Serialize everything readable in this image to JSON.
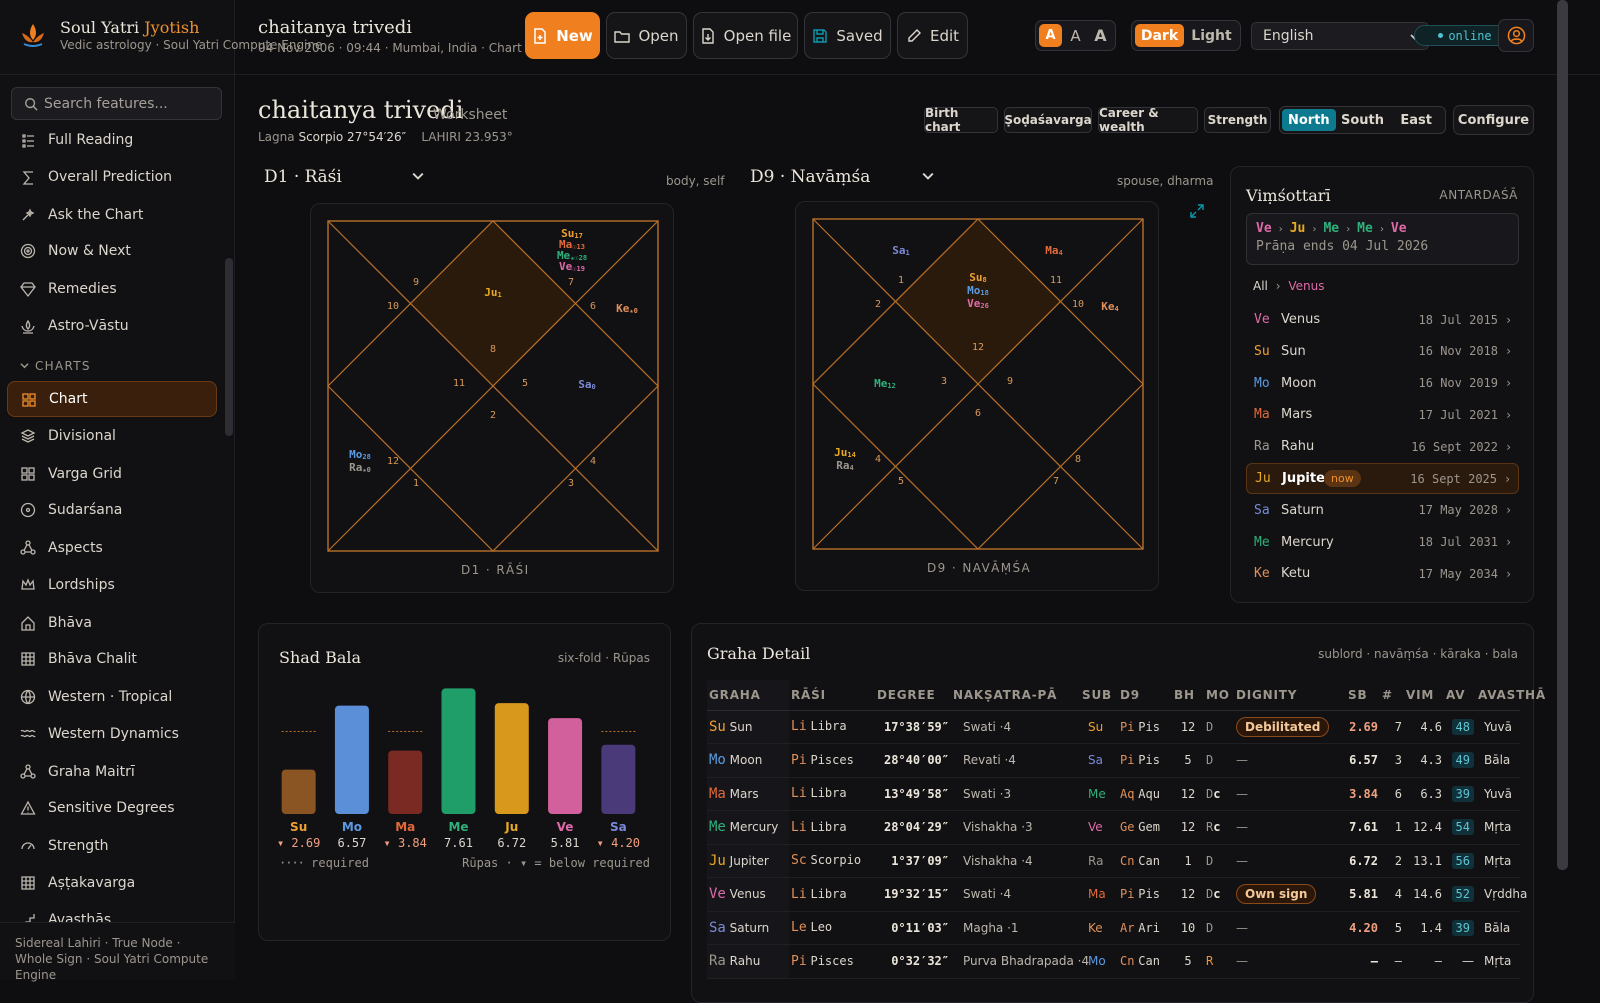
{
  "app": {
    "brand_name": "Soul Yatri",
    "brand_accent": "Jyotish",
    "brand_tagline": "Vedic astrology · Soul Yatri Compute Engine",
    "search_placeholder": "Search features...",
    "footer": "Sidereal Lahiri · True Node · Whole Sign · Soul Yatri Compute Engine"
  },
  "sidebar": {
    "items": [
      {
        "label": "Full Reading",
        "icon": "list-icon"
      },
      {
        "label": "Overall Prediction",
        "icon": "sigma-icon"
      },
      {
        "label": "Ask the Chart",
        "icon": "sparkle-icon"
      },
      {
        "label": "Now & Next",
        "icon": "target-icon"
      },
      {
        "label": "Remedies",
        "icon": "gem-icon"
      },
      {
        "label": "Astro-Vāstu",
        "icon": "lotus-icon"
      }
    ],
    "section": "CHARTS",
    "chart_items": [
      {
        "label": "Chart",
        "icon": "grid-icon",
        "active": true
      },
      {
        "label": "Divisional",
        "icon": "layers-icon"
      },
      {
        "label": "Varga Grid",
        "icon": "grid-icon"
      },
      {
        "label": "Sudarśana",
        "icon": "circle-icon"
      },
      {
        "label": "Aspects",
        "icon": "network-icon"
      },
      {
        "label": "Lordships",
        "icon": "crown-icon"
      },
      {
        "label": "Bhāva",
        "icon": "house-icon"
      },
      {
        "label": "Bhāva Chalit",
        "icon": "table-icon"
      },
      {
        "label": "Western · Tropical",
        "icon": "globe-icon"
      },
      {
        "label": "Western Dynamics",
        "icon": "waves-icon"
      },
      {
        "label": "Graha Maitrī",
        "icon": "network-icon"
      },
      {
        "label": "Sensitive Degrees",
        "icon": "alert-icon"
      },
      {
        "label": "Strength",
        "icon": "gauge-icon"
      },
      {
        "label": "Aṣṭakavarga",
        "icon": "table-icon"
      },
      {
        "label": "Avasthās",
        "icon": "steps-icon"
      }
    ]
  },
  "topbar": {
    "name": "chaitanya trivedi",
    "meta": "04 Nov 2006 · 09:44 · Mumbai, India  ·  Chart",
    "buttons": {
      "new": "New",
      "open": "Open",
      "open_file": "Open file",
      "saved": "Saved",
      "edit": "Edit"
    },
    "font_sizes": [
      "A",
      "A",
      "A"
    ],
    "theme": [
      "Dark",
      "Light"
    ],
    "language": "English",
    "status": "online"
  },
  "worksheet": {
    "title": "chaitanya trivedi",
    "subtitle": "Worksheet",
    "lagna_label": "Lagna",
    "lagna_value": "Scorpio 27°54′26″",
    "ayanamsa": "LAHIRI 23.953°",
    "tabs": [
      "Birth chart",
      "Ṣoḍaśavarga",
      "Career & wealth",
      "Strength"
    ],
    "styles": [
      "North",
      "South",
      "East"
    ],
    "configure": "Configure"
  },
  "d1": {
    "title": "D1 · Rāśi",
    "note": "body, self",
    "label": "D1 · RĀŚI"
  },
  "d9": {
    "title": "D9 · Navāṃśa",
    "note": "spouse, dharma",
    "label": "D9 · NAVĀṂŚA"
  },
  "vimshottari": {
    "title": "Viṃśottarī",
    "level": "ANTARDAŚĀ",
    "chain": [
      "Ve",
      "Ju",
      "Me",
      "Me",
      "Ve"
    ],
    "prana_ends": "Prāṇa ends 04 Jul 2026",
    "crumb_all": "All",
    "crumb_current": "Venus",
    "rows": [
      {
        "ab": "Ve",
        "name": "Venus",
        "date": "18 Jul 2015"
      },
      {
        "ab": "Su",
        "name": "Sun",
        "date": "16 Nov 2018"
      },
      {
        "ab": "Mo",
        "name": "Moon",
        "date": "16 Nov 2019"
      },
      {
        "ab": "Ma",
        "name": "Mars",
        "date": "17 Jul 2021"
      },
      {
        "ab": "Ra",
        "name": "Rahu",
        "date": "16 Sept 2022"
      },
      {
        "ab": "Ju",
        "name": "Jupiter",
        "date": "16 Sept 2025",
        "badge": "now"
      },
      {
        "ab": "Sa",
        "name": "Saturn",
        "date": "17 May 2028"
      },
      {
        "ab": "Me",
        "name": "Mercury",
        "date": "18 Jul 2031"
      },
      {
        "ab": "Ke",
        "name": "Ketu",
        "date": "17 May 2034"
      }
    ]
  },
  "shadbala": {
    "title": "Shad Bala",
    "note": "six-fold · Rūpas",
    "legend_required": "required",
    "legend_units": "Rūpas · ▾ = below required"
  },
  "chart_data": {
    "type": "bar",
    "title": "Shad Bala",
    "categories": [
      "Su",
      "Mo",
      "Ma",
      "Me",
      "Ju",
      "Ve",
      "Sa"
    ],
    "values": [
      2.69,
      6.57,
      3.84,
      7.61,
      6.72,
      5.81,
      4.2
    ],
    "below_required": [
      true,
      false,
      true,
      false,
      false,
      false,
      true
    ],
    "required": [
      5.0,
      null,
      5.0,
      null,
      null,
      null,
      5.0
    ],
    "colors": [
      "#8a5522",
      "#5b8fd8",
      "#7a2a22",
      "#1f9e6a",
      "#d8981c",
      "#d2609c",
      "#4a3a7a"
    ],
    "ylim": [
      0,
      8
    ],
    "value_labels": [
      "▾ 2.69",
      "6.57",
      "▾ 3.84",
      "7.61",
      "6.72",
      "5.81",
      "▾ 4.20"
    ]
  },
  "graha": {
    "title": "Graha Detail",
    "note": "sublord · navāṃśa · kāraka · bala",
    "headers": [
      "GRAHA",
      "RĀŚI",
      "DEGREE",
      "NAKṢATRA-PĀ",
      "SUB",
      "D9",
      "BH",
      "MO",
      "DIGNITY",
      "SB",
      "#",
      "VIM",
      "AV",
      "AVASTHĀ"
    ],
    "rows": [
      {
        "ab": "Su",
        "name": "Sun",
        "rab": "Li",
        "rasi": "Libra",
        "deg": "17°38′59″",
        "nak": "Swati ·4",
        "sub": "Su",
        "d9ab": "Pi",
        "d9": "Pis",
        "bh": "12",
        "mo": "D",
        "dig": "Debilitated",
        "sb": "2.69",
        "num": "7",
        "vim": "4.6",
        "av": "48",
        "ava": "Yuvā"
      },
      {
        "ab": "Mo",
        "name": "Moon",
        "rab": "Pi",
        "rasi": "Pisces",
        "deg": "28°40′00″",
        "nak": "Revati ·4",
        "sub": "Sa",
        "d9ab": "Pi",
        "d9": "Pis",
        "bh": "5",
        "mo": "D",
        "dig": "—",
        "sb": "6.57",
        "num": "3",
        "vim": "4.3",
        "av": "49",
        "ava": "Bāla"
      },
      {
        "ab": "Ma",
        "name": "Mars",
        "rab": "Li",
        "rasi": "Libra",
        "deg": "13°49′58″",
        "nak": "Swati ·3",
        "sub": "Me",
        "d9ab": "Aq",
        "d9": "Aqu",
        "bh": "12",
        "mo": "Dc",
        "dig": "—",
        "sb": "3.84",
        "num": "6",
        "vim": "6.3",
        "av": "39",
        "ava": "Yuvā"
      },
      {
        "ab": "Me",
        "name": "Mercury",
        "rab": "Li",
        "rasi": "Libra",
        "deg": "28°04′29″",
        "nak": "Vishakha ·3",
        "sub": "Ve",
        "d9ab": "Ge",
        "d9": "Gem",
        "bh": "12",
        "mo": "Rc",
        "dig": "—",
        "sb": "7.61",
        "num": "1",
        "vim": "12.4",
        "av": "54",
        "ava": "Mṛta"
      },
      {
        "ab": "Ju",
        "name": "Jupiter",
        "rab": "Sc",
        "rasi": "Scorpio",
        "deg": "1°37′09″",
        "nak": "Vishakha ·4",
        "sub": "Ra",
        "d9ab": "Cn",
        "d9": "Can",
        "bh": "1",
        "mo": "D",
        "dig": "—",
        "sb": "6.72",
        "num": "2",
        "vim": "13.1",
        "av": "56",
        "ava": "Mṛta"
      },
      {
        "ab": "Ve",
        "name": "Venus",
        "rab": "Li",
        "rasi": "Libra",
        "deg": "19°32′15″",
        "nak": "Swati ·4",
        "sub": "Ma",
        "d9ab": "Pi",
        "d9": "Pis",
        "bh": "12",
        "mo": "Dc",
        "dig": "Own sign",
        "sb": "5.81",
        "num": "4",
        "vim": "14.6",
        "av": "52",
        "ava": "Vṛddha"
      },
      {
        "ab": "Sa",
        "name": "Saturn",
        "rab": "Le",
        "rasi": "Leo",
        "deg": "0°11′03″",
        "nak": "Magha ·1",
        "sub": "Ke",
        "d9ab": "Ar",
        "d9": "Ari",
        "bh": "10",
        "mo": "D",
        "dig": "—",
        "sb": "4.20",
        "num": "5",
        "vim": "1.4",
        "av": "39",
        "ava": "Bāla"
      },
      {
        "ab": "Ra",
        "name": "Rahu",
        "rab": "Pi",
        "rasi": "Pisces",
        "deg": "0°32′32″",
        "nak": "Purva Bhadrapada ·4",
        "sub": "Mo",
        "d9ab": "Cn",
        "d9": "Can",
        "bh": "5",
        "mo": "R",
        "dig": "—",
        "sb": "—",
        "num": "—",
        "vim": "—",
        "av": "—",
        "ava": "Mṛta"
      }
    ]
  },
  "colors": {
    "Su": "#f0a030",
    "Mo": "#5b9ae0",
    "Ma": "#e06a3a",
    "Me": "#2fb07a",
    "Ju": "#e8a822",
    "Ve": "#de6aa8",
    "Sa": "#7a8ad8",
    "Ra": "#9c968c",
    "Ke": "#e0905a",
    "accent": "#f0801f",
    "teal": "#0d7a8f",
    "line": "#b8702a"
  }
}
